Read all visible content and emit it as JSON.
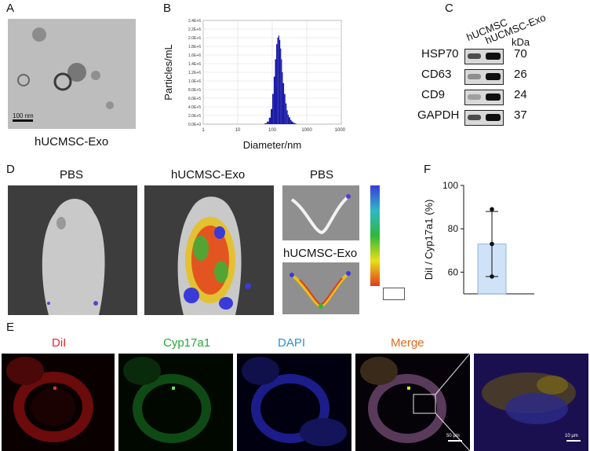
{
  "panels": {
    "A": {
      "letter": "A",
      "scale_bar": "100 nm",
      "caption": "hUCMSC-Exo"
    },
    "B": {
      "letter": "B",
      "caption": "Diameter/nm"
    },
    "C": {
      "letter": "C",
      "lane_labels": [
        "hUCMSC",
        "hUCMSC-Exo"
      ],
      "unit": "kDa",
      "rows": [
        {
          "protein": "HSP70",
          "kda": "70"
        },
        {
          "protein": "CD63",
          "kda": "26"
        },
        {
          "protein": "CD9",
          "kda": "24"
        },
        {
          "protein": "GAPDH",
          "kda": "37"
        }
      ]
    },
    "D": {
      "letter": "D",
      "label_pbs": "PBS",
      "label_exo": "hUCMSC-Exo",
      "label_pbs_small": "PBS",
      "label_exo_small": "hUCMSC-Exo"
    },
    "E": {
      "letter": "E",
      "channels": [
        "DiI",
        "Cyp17a1",
        "DAPI",
        "Merge"
      ],
      "channel_colors": [
        "#e8262b",
        "#26a63a",
        "#2f8fd6",
        "#e06a1c"
      ],
      "scale_bar_1": "50 μm",
      "scale_bar_2": "10 μm"
    },
    "F": {
      "letter": "F"
    }
  },
  "chart_data": [
    {
      "type": "bar",
      "panel": "B",
      "ylabel": "Particles/mL",
      "xlabel": "Diameter/nm",
      "x_scale": "log",
      "xlim": [
        1,
        10000
      ],
      "ylim": [
        0,
        2400000
      ],
      "xticks": [
        "1",
        "10",
        "100",
        "1000",
        "10000"
      ],
      "yticks": [
        "0.0E+0",
        "2.0E+5",
        "4.0E+5",
        "6.0E+5",
        "8.0E+5",
        "1.0E+6",
        "1.2E+6",
        "1.4E+6",
        "1.6E+6",
        "1.8E+6",
        "2.0E+6",
        "2.2E+6",
        "2.4E+6"
      ],
      "grid": true,
      "color": "#1a1aa8",
      "x": [
        60,
        70,
        80,
        90,
        100,
        110,
        120,
        130,
        140,
        150,
        160,
        170,
        180,
        190,
        200,
        220,
        240,
        260,
        280,
        300,
        330,
        360,
        400,
        450
      ],
      "values": [
        20000,
        60000,
        150000,
        350000,
        700000,
        1100000,
        1500000,
        1850000,
        2000000,
        2050000,
        1950000,
        1750000,
        1500000,
        1200000,
        950000,
        700000,
        480000,
        320000,
        220000,
        160000,
        100000,
        60000,
        30000,
        15000
      ]
    },
    {
      "type": "bar",
      "panel": "F",
      "ylabel": "DiI / Cyp17a1 (%)",
      "yticks": [
        "60",
        "80",
        "100"
      ],
      "ylim": [
        50,
        100
      ],
      "grid": false,
      "values": [
        73
      ],
      "error": [
        15
      ],
      "points": [
        89,
        73,
        58
      ],
      "color": "#cfe2f7"
    }
  ]
}
